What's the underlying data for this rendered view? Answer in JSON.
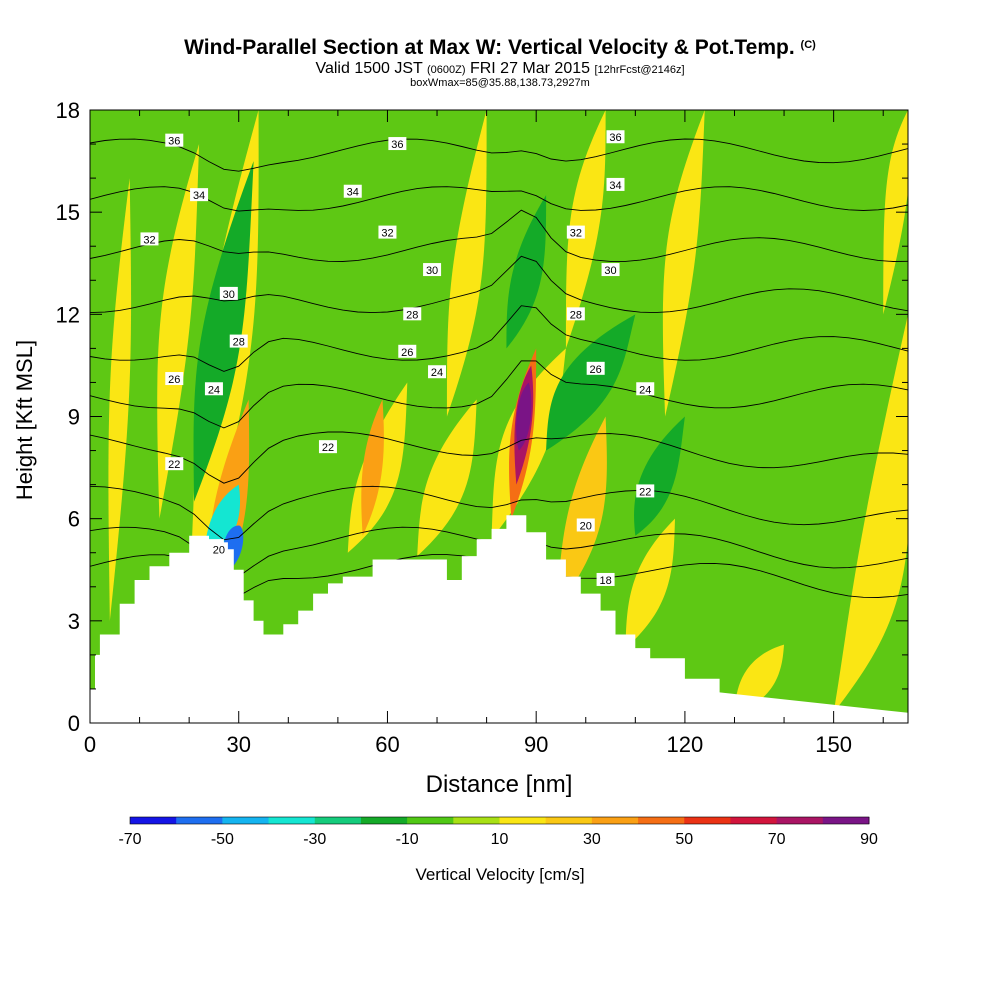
{
  "title": {
    "main": "Wind-Parallel Section at Max W: Vertical Velocity & Pot.Temp.",
    "copyright_mark": "(C)",
    "valid_prefix": "Valid 1500 JST",
    "valid_utc": "(0600Z)",
    "valid_date": "FRI 27 Mar 2015",
    "forecast": "[12hrFcst@2146z]",
    "box_info": "boxWmax=85@35.88,138.73,2927m"
  },
  "chart_data": {
    "type": "heatmap",
    "xlabel": "Distance [nm]",
    "ylabel": "Height [Kft MSL]",
    "xlim": [
      0,
      165
    ],
    "ylim": [
      0,
      18
    ],
    "x_ticks": [
      0,
      30,
      60,
      90,
      120,
      150
    ],
    "y_ticks": [
      0,
      3,
      6,
      9,
      12,
      15,
      18
    ],
    "colorbar": {
      "label": "Vertical Velocity [cm/s]",
      "tick_labels": [
        "-70",
        "-50",
        "-30",
        "-10",
        "10",
        "30",
        "50",
        "70",
        "90"
      ],
      "levels": [
        -70,
        -60,
        -50,
        -40,
        -30,
        -20,
        -10,
        0,
        10,
        20,
        30,
        40,
        50,
        60,
        70,
        80,
        90
      ],
      "colors": [
        "#1414e6",
        "#1e6ef0",
        "#14b4f0",
        "#14e6d2",
        "#14cc7c",
        "#14aa28",
        "#50c814",
        "#a8e014",
        "#fae614",
        "#fac814",
        "#faa014",
        "#f56e14",
        "#eb3214",
        "#d2143c",
        "#aa1464",
        "#7a1486"
      ]
    },
    "background_color": "#5ec814",
    "terrain": {
      "distance": [
        0,
        1,
        1,
        2,
        2,
        6,
        6,
        9,
        9,
        12,
        12,
        16,
        16,
        20,
        20,
        24,
        24,
        27,
        27,
        29,
        29,
        31,
        31,
        33,
        33,
        35,
        35,
        39,
        39,
        42,
        42,
        45,
        45,
        48,
        48,
        51,
        51,
        57,
        57,
        64,
        64,
        72,
        72,
        75,
        75,
        78,
        78,
        81,
        81,
        84,
        84,
        88,
        88,
        92,
        92,
        96,
        96,
        99,
        99,
        103,
        103,
        106,
        106,
        110,
        110,
        113,
        113,
        120,
        120,
        127,
        127,
        165
      ],
      "height": [
        1.0,
        1.0,
        2.0,
        2.0,
        2.6,
        2.6,
        3.5,
        3.5,
        4.2,
        4.2,
        4.6,
        4.6,
        5.0,
        5.0,
        5.5,
        5.5,
        5.4,
        5.4,
        5.1,
        5.1,
        4.5,
        4.5,
        3.6,
        3.6,
        3.0,
        3.0,
        2.6,
        2.6,
        2.9,
        2.9,
        3.3,
        3.3,
        3.8,
        3.8,
        4.1,
        4.1,
        4.3,
        4.3,
        4.8,
        4.8,
        4.8,
        4.8,
        4.2,
        4.2,
        4.9,
        4.9,
        5.4,
        5.4,
        5.7,
        5.7,
        6.1,
        6.1,
        5.6,
        5.6,
        4.8,
        4.8,
        4.3,
        4.3,
        3.8,
        3.8,
        3.3,
        3.3,
        2.6,
        2.6,
        2.2,
        2.2,
        1.9,
        1.9,
        1.3,
        1.3,
        0.9,
        0.3
      ]
    },
    "vertical_velocity_features": [
      {
        "x": [
          20,
          28,
          34
        ],
        "y": [
          3.2,
          11,
          18
        ],
        "value": 15
      },
      {
        "x": [
          23,
          28,
          32
        ],
        "y": [
          2.8,
          6,
          9.5
        ],
        "value": 30
      },
      {
        "x": [
          21,
          26,
          33
        ],
        "y": [
          6.5,
          11,
          16.5
        ],
        "value": -20
      },
      {
        "x": [
          23,
          27,
          30
        ],
        "y": [
          5,
          5.8,
          7
        ],
        "value": -40
      },
      {
        "x": [
          26,
          29,
          30
        ],
        "y": [
          4.3,
          5.2,
          5.8
        ],
        "value": -60
      },
      {
        "x": [
          52,
          58,
          64
        ],
        "y": [
          5,
          7,
          10
        ],
        "value": 15
      },
      {
        "x": [
          55,
          57,
          59
        ],
        "y": [
          5.5,
          7.5,
          9.5
        ],
        "value": 30
      },
      {
        "x": [
          66,
          72,
          78
        ],
        "y": [
          4.9,
          7,
          9.5
        ],
        "value": 15
      },
      {
        "x": [
          81,
          88,
          96
        ],
        "y": [
          5.4,
          8.5,
          11
        ],
        "value": 15
      },
      {
        "x": [
          85,
          87,
          90
        ],
        "y": [
          6,
          8.5,
          11
        ],
        "value": 40
      },
      {
        "x": [
          86,
          87.5,
          89
        ],
        "y": [
          7,
          9,
          10.5
        ],
        "value": 70
      },
      {
        "x": [
          86.5,
          87.5,
          88.5
        ],
        "y": [
          8,
          9,
          10
        ],
        "value": 85
      },
      {
        "x": [
          84,
          88,
          92
        ],
        "y": [
          11,
          13,
          15.5
        ],
        "value": -20
      },
      {
        "x": [
          94,
          100,
          104
        ],
        "y": [
          3.3,
          6,
          9
        ],
        "value": 25
      },
      {
        "x": [
          92,
          100,
          110
        ],
        "y": [
          8,
          10,
          12
        ],
        "value": -20
      },
      {
        "x": [
          110,
          114,
          120
        ],
        "y": [
          5.5,
          7,
          9
        ],
        "value": -20
      },
      {
        "x": [
          108,
          113,
          118
        ],
        "y": [
          2.2,
          4,
          6
        ],
        "value": 12
      },
      {
        "x": [
          14,
          17,
          22
        ],
        "y": [
          6,
          12,
          17
        ],
        "value": 12
      },
      {
        "x": [
          116,
          119,
          124
        ],
        "y": [
          9,
          14,
          18
        ],
        "value": 12
      },
      {
        "x": [
          96,
          100,
          104
        ],
        "y": [
          11,
          15,
          18
        ],
        "value": 12
      },
      {
        "x": [
          72,
          76,
          80
        ],
        "y": [
          9,
          13,
          18
        ],
        "value": 12
      },
      {
        "x": [
          4,
          6,
          8
        ],
        "y": [
          3,
          10,
          16
        ],
        "value": 12
      },
      {
        "x": [
          130,
          135,
          140
        ],
        "y": [
          0.3,
          1.3,
          2.3
        ],
        "value": 12
      },
      {
        "x": [
          150,
          160,
          165
        ],
        "y": [
          0.3,
          4,
          12
        ],
        "value": 12
      },
      {
        "x": [
          160,
          163,
          165
        ],
        "y": [
          12,
          16,
          18
        ],
        "value": 12
      }
    ],
    "theta_contours": [
      {
        "value": "18",
        "base": 4.6,
        "label_x": 116
      },
      {
        "value": "20",
        "base": 5.4,
        "label_x": 27
      },
      {
        "value": "22",
        "base": 6.6,
        "label_x": 17
      },
      {
        "value": "24",
        "base": 8.2,
        "label_x": 27
      },
      {
        "value": "26",
        "base": 9.6,
        "label_x": 17
      },
      {
        "value": "28",
        "base": 11.0,
        "label_x": 30
      },
      {
        "value": "30",
        "base": 12.4,
        "label_x": 27
      },
      {
        "value": "32",
        "base": 13.9,
        "label_x": 12
      },
      {
        "value": "34",
        "base": 15.4,
        "label_x": 22
      },
      {
        "value": "36",
        "base": 16.8,
        "label_x": 17
      }
    ],
    "contour_labels": [
      {
        "text": "36",
        "x": 17,
        "y": 17.1
      },
      {
        "text": "36",
        "x": 62,
        "y": 17.0
      },
      {
        "text": "36",
        "x": 106,
        "y": 17.2
      },
      {
        "text": "34",
        "x": 22,
        "y": 15.5
      },
      {
        "text": "34",
        "x": 53,
        "y": 15.6
      },
      {
        "text": "34",
        "x": 106,
        "y": 15.8
      },
      {
        "text": "32",
        "x": 12,
        "y": 14.2
      },
      {
        "text": "32",
        "x": 60,
        "y": 14.4
      },
      {
        "text": "32",
        "x": 98,
        "y": 14.4
      },
      {
        "text": "30",
        "x": 28,
        "y": 12.6
      },
      {
        "text": "30",
        "x": 69,
        "y": 13.3
      },
      {
        "text": "30",
        "x": 105,
        "y": 13.3
      },
      {
        "text": "28",
        "x": 30,
        "y": 11.2
      },
      {
        "text": "28",
        "x": 65,
        "y": 12.0
      },
      {
        "text": "28",
        "x": 98,
        "y": 12.0
      },
      {
        "text": "26",
        "x": 17,
        "y": 10.1
      },
      {
        "text": "26",
        "x": 64,
        "y": 10.9
      },
      {
        "text": "26",
        "x": 102,
        "y": 10.4
      },
      {
        "text": "24",
        "x": 25,
        "y": 9.8
      },
      {
        "text": "24",
        "x": 70,
        "y": 10.3
      },
      {
        "text": "24",
        "x": 112,
        "y": 9.8
      },
      {
        "text": "22",
        "x": 17,
        "y": 7.6
      },
      {
        "text": "22",
        "x": 48,
        "y": 8.1
      },
      {
        "text": "22",
        "x": 112,
        "y": 6.8
      },
      {
        "text": "20",
        "x": 26,
        "y": 5.1
      },
      {
        "text": "20",
        "x": 100,
        "y": 5.8
      },
      {
        "text": "18",
        "x": 104,
        "y": 4.2
      }
    ]
  }
}
